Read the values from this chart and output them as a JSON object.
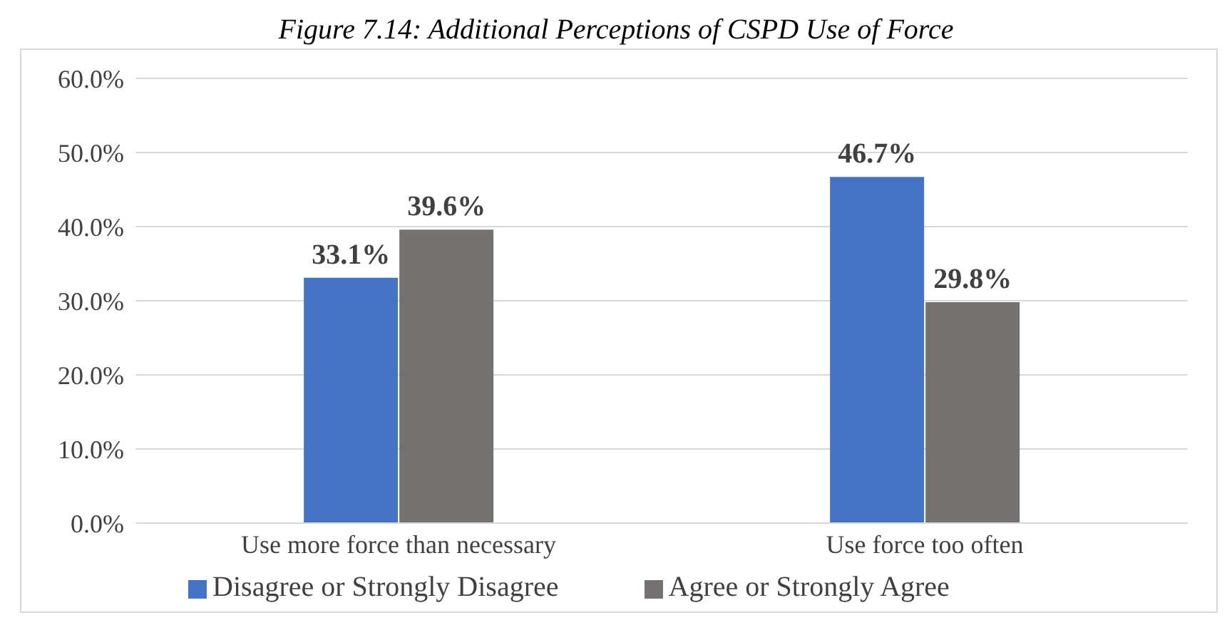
{
  "chart_data": {
    "type": "bar",
    "title": "Figure 7.14: Additional Perceptions of CSPD Use of Force",
    "categories": [
      "Use more force than necessary",
      "Use force too often"
    ],
    "series": [
      {
        "name": "Disagree or Strongly Disagree",
        "color": "#4472c4",
        "values": [
          33.1,
          46.7
        ]
      },
      {
        "name": "Agree or Strongly Agree",
        "color": "#767171",
        "values": [
          39.6,
          29.8
        ]
      }
    ],
    "ylim": [
      0,
      60
    ],
    "yticks": [
      {
        "value": 0,
        "label": "0.0%"
      },
      {
        "value": 10,
        "label": "10.0%"
      },
      {
        "value": 20,
        "label": "20.0%"
      },
      {
        "value": 30,
        "label": "30.0%"
      },
      {
        "value": 40,
        "label": "40.0%"
      },
      {
        "value": 50,
        "label": "50.0%"
      },
      {
        "value": 60,
        "label": "60.0%"
      }
    ],
    "grid": "y",
    "legend": "bottom",
    "value_labels": [
      [
        "33.1%",
        "46.7%"
      ],
      [
        "39.6%",
        "29.8%"
      ]
    ]
  }
}
